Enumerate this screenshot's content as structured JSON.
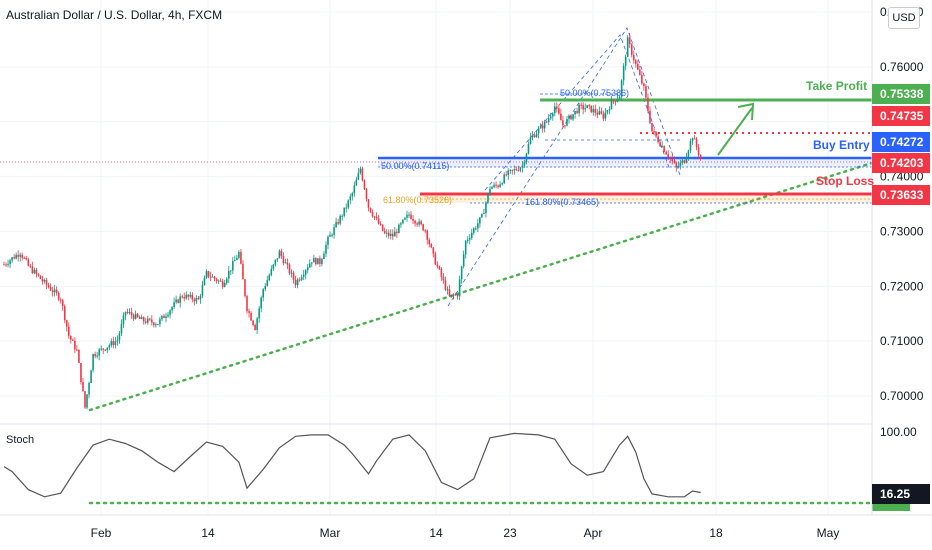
{
  "header": {
    "title": "Australian Dollar / U.S. Dollar, 4h, FXCM",
    "currency": "USD"
  },
  "indicator": {
    "label": "Stoch"
  },
  "annotations": {
    "take_profit": "Take Profit",
    "buy_entry": "Buy Entry",
    "stop_loss": "Stop Loss",
    "fib_top": "50.00%(0.75386)",
    "fib_entry": "50.00%(0.74115)",
    "fib_stop": "61.80%(0.73526)",
    "fib_ext": "161.80%(0.73465)"
  },
  "price_tags": [
    {
      "label": "0.75338",
      "color": "#4caf50"
    },
    {
      "label": "0.74735",
      "color": "#f23645"
    },
    {
      "label": "0.74272",
      "color": "#2962ff"
    },
    {
      "label": "0.74203",
      "color": "#f23645"
    },
    {
      "label": "0.73633",
      "color": "#f23645"
    }
  ],
  "stoch_tag": {
    "label": "16.25",
    "color": "#131722"
  },
  "colors": {
    "up": "#089981",
    "down": "#f23645",
    "green_level": "#4caf50",
    "blue_level": "#2962ff",
    "red_level": "#f23645",
    "grid": "#f0f3fa",
    "text": "#131722"
  },
  "chart_data": {
    "type": "candlestick",
    "symbol": "Australian Dollar / U.S. Dollar",
    "timeframe": "4h",
    "ylim": [
      0.6962,
      0.7703
    ],
    "y_ticks": [
      "0.77000",
      "0.76000",
      "0.75000",
      "0.74000",
      "0.73000",
      "0.72000",
      "0.71000",
      "0.70000"
    ],
    "x_ticks": [
      "Feb",
      "14",
      "Mar",
      "14",
      "23",
      "Apr",
      "18",
      "May"
    ],
    "stoch_ticks": [
      "100.00"
    ],
    "close_path": [
      [
        0,
        0.724
      ],
      [
        2,
        0.7262
      ],
      [
        3,
        0.7237
      ],
      [
        5,
        0.7206
      ],
      [
        7,
        0.7178
      ],
      [
        8,
        0.711
      ],
      [
        9,
        0.7082
      ],
      [
        10,
        0.6979
      ],
      [
        11,
        0.7075
      ],
      [
        14,
        0.7102
      ],
      [
        15,
        0.7154
      ],
      [
        17,
        0.7138
      ],
      [
        19,
        0.7133
      ],
      [
        22,
        0.7183
      ],
      [
        24,
        0.7175
      ],
      [
        25,
        0.7223
      ],
      [
        27,
        0.7205
      ],
      [
        29,
        0.7261
      ],
      [
        30,
        0.716
      ],
      [
        31,
        0.7125
      ],
      [
        32,
        0.7195
      ],
      [
        34,
        0.7262
      ],
      [
        36,
        0.7206
      ],
      [
        38,
        0.7248
      ],
      [
        39,
        0.7244
      ],
      [
        40,
        0.7285
      ],
      [
        42,
        0.7338
      ],
      [
        43,
        0.7369
      ],
      [
        44,
        0.7415
      ],
      [
        45,
        0.7345
      ],
      [
        47,
        0.7295
      ],
      [
        48,
        0.7292
      ],
      [
        50,
        0.7331
      ],
      [
        52,
        0.7303
      ],
      [
        53,
        0.7254
      ],
      [
        55,
        0.718
      ],
      [
        56,
        0.7186
      ],
      [
        57,
        0.7282
      ],
      [
        59,
        0.7326
      ],
      [
        60,
        0.738
      ],
      [
        61,
        0.7384
      ],
      [
        62,
        0.7403
      ],
      [
        64,
        0.742
      ],
      [
        65,
        0.747
      ],
      [
        67,
        0.75
      ],
      [
        68,
        0.7528
      ],
      [
        69,
        0.7494
      ],
      [
        71,
        0.7525
      ],
      [
        72,
        0.7526
      ],
      [
        74,
        0.751
      ],
      [
        75,
        0.7535
      ],
      [
        76,
        0.7548
      ],
      [
        77,
        0.7648
      ],
      [
        79,
        0.756
      ],
      [
        80,
        0.7483
      ],
      [
        81,
        0.7461
      ],
      [
        83,
        0.7416
      ],
      [
        84,
        0.743
      ],
      [
        85,
        0.7474
      ],
      [
        86,
        0.7433
      ]
    ],
    "stoch_path": [
      [
        0,
        52
      ],
      [
        1,
        45
      ],
      [
        3,
        20
      ],
      [
        5,
        10
      ],
      [
        7,
        15
      ],
      [
        9,
        50
      ],
      [
        11,
        82
      ],
      [
        13,
        90
      ],
      [
        15,
        84
      ],
      [
        17,
        74
      ],
      [
        19,
        58
      ],
      [
        21,
        45
      ],
      [
        23,
        66
      ],
      [
        25,
        86
      ],
      [
        27,
        80
      ],
      [
        29,
        58
      ],
      [
        30,
        22
      ],
      [
        32,
        48
      ],
      [
        34,
        78
      ],
      [
        36,
        94
      ],
      [
        38,
        96
      ],
      [
        40,
        96
      ],
      [
        42,
        82
      ],
      [
        43,
        70
      ],
      [
        45,
        42
      ],
      [
        46,
        60
      ],
      [
        48,
        90
      ],
      [
        50,
        96
      ],
      [
        52,
        74
      ],
      [
        54,
        30
      ],
      [
        56,
        20
      ],
      [
        58,
        35
      ],
      [
        60,
        92
      ],
      [
        63,
        98
      ],
      [
        66,
        96
      ],
      [
        68,
        90
      ],
      [
        70,
        56
      ],
      [
        72,
        40
      ],
      [
        74,
        45
      ],
      [
        76,
        82
      ],
      [
        77,
        94
      ],
      [
        78,
        72
      ],
      [
        79,
        35
      ],
      [
        80,
        14
      ],
      [
        82,
        10
      ],
      [
        84,
        10
      ],
      [
        85,
        18
      ],
      [
        86,
        16
      ]
    ],
    "levels": [
      {
        "name": "Take Profit",
        "price": 0.75338
      },
      {
        "name": "Buy Entry",
        "price": 0.74272
      },
      {
        "name": "Stop Loss",
        "price": 0.73633
      }
    ]
  }
}
